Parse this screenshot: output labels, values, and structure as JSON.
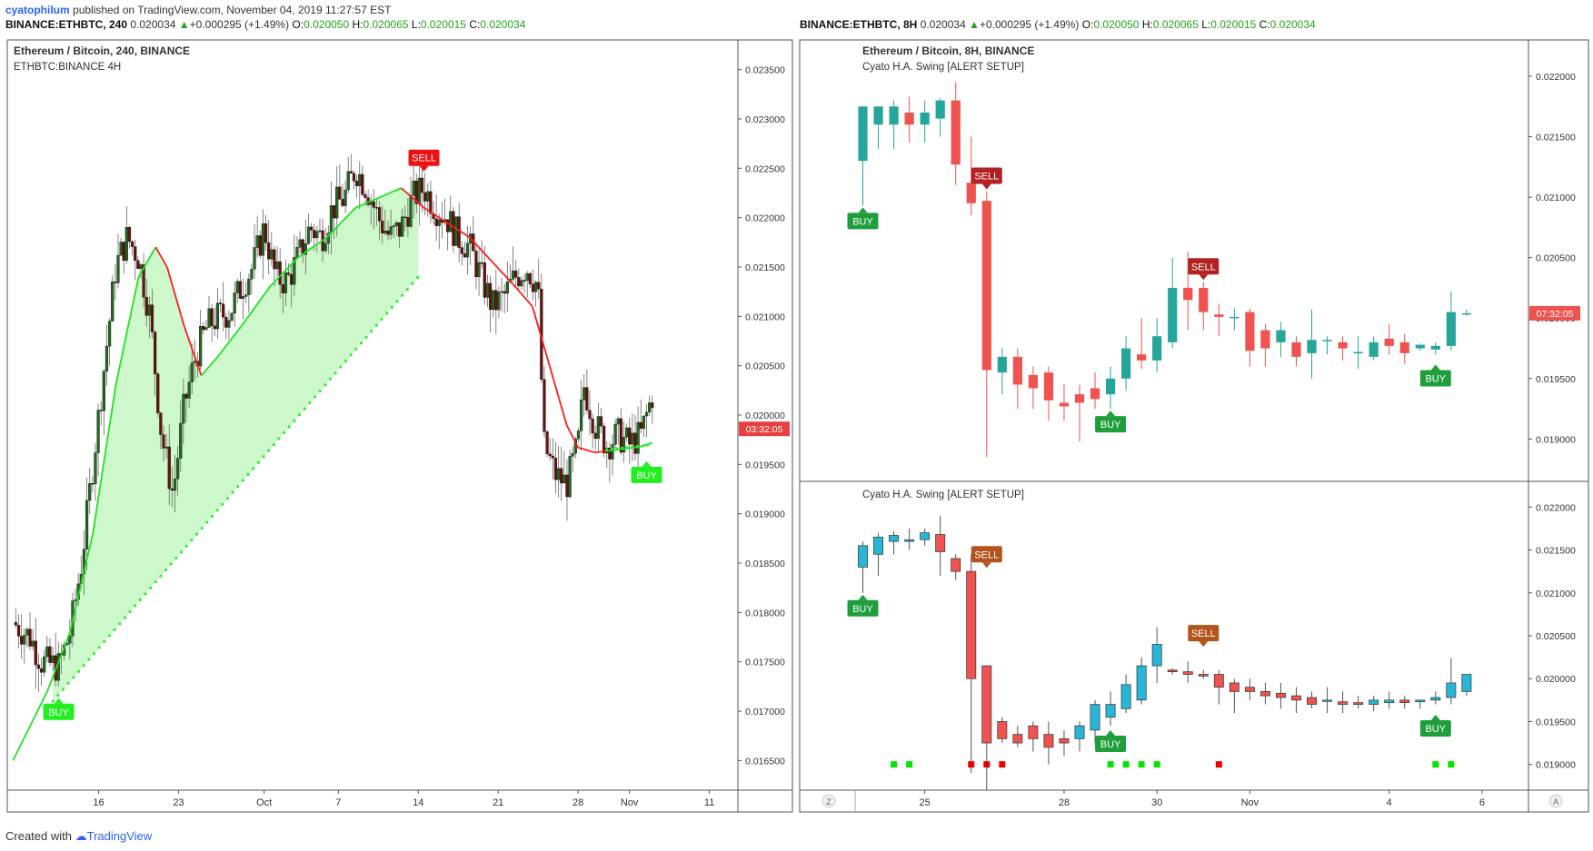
{
  "header_left": {
    "user": "cyatophilum",
    "published": " published on TradingView.com, November 04, 2019 11:27:57 EST",
    "symbol": "BINANCE:ETHBTC, 240",
    "price": "0.020034",
    "change": "+0.000295 (+1.49%)",
    "o_label": "O:",
    "o": "0.020050",
    "h_label": "H:",
    "h": "0.020065",
    "l_label": "L:",
    "l": "0.020015",
    "c_label": "C:",
    "c": "0.020034"
  },
  "header_right": {
    "symbol": "BINANCE:ETHBTC, 8H",
    "price": "0.020034",
    "change": "+0.000295 (+1.49%)",
    "o_label": "O:",
    "o": "0.020050",
    "h_label": "H:",
    "h": "0.020065",
    "l_label": "L:",
    "l": "0.020015",
    "c_label": "C:",
    "c": "0.020034"
  },
  "footer": {
    "created_with": "Created with",
    "brand": "TradingView"
  },
  "colors": {
    "bull_left": "#1f6b1f",
    "bear_left": "#6b0f0f",
    "ha_up": "#26a69a",
    "ha_down": "#ef5350",
    "cyan": "#29b6d6",
    "signal_buy": "#00e600",
    "signal_sell": "#e60000",
    "buy_label_right": "#1f9e3c",
    "sell_label_right": "#b22222",
    "sell_label_bottom": "#b5531c"
  },
  "chart_data": [
    {
      "id": "left",
      "type": "candlestick",
      "title": "Ethereum / Bitcoin, 240, BINANCE",
      "subtitle": "ETHBTC:BINANCE 4H",
      "x_ticks": [
        "16",
        "23",
        "Oct",
        "7",
        "14",
        "21",
        "28",
        "Nov",
        "11"
      ],
      "x_tick_index": [
        15,
        29,
        44,
        57,
        71,
        85,
        99,
        108,
        122
      ],
      "x_range": [
        -1,
        127
      ],
      "y_range": [
        0.0162,
        0.0238
      ],
      "y_ticks": [
        "0.023500",
        "0.023000",
        "0.022500",
        "0.022000",
        "0.021500",
        "0.021000",
        "0.020500",
        "0.020000",
        "0.019500",
        "0.019000",
        "0.018500",
        "0.018000",
        "0.017500",
        "0.017000",
        "0.016500"
      ],
      "last_price_label": "03:32:05",
      "last_price": 0.01986,
      "close_path": [
        [
          0,
          0.0179
        ],
        [
          3,
          0.01775
        ],
        [
          5,
          0.0175
        ],
        [
          8,
          0.01745
        ],
        [
          10,
          0.0178
        ],
        [
          12,
          0.0185
        ],
        [
          14,
          0.0195
        ],
        [
          16,
          0.0205
        ],
        [
          18,
          0.0215
        ],
        [
          20,
          0.0218
        ],
        [
          22,
          0.0216
        ],
        [
          24,
          0.021
        ],
        [
          26,
          0.0198
        ],
        [
          28,
          0.0192
        ],
        [
          30,
          0.0201
        ],
        [
          32,
          0.0206
        ],
        [
          34,
          0.0209
        ],
        [
          36,
          0.021
        ],
        [
          38,
          0.02105
        ],
        [
          40,
          0.0213
        ],
        [
          42,
          0.0215
        ],
        [
          44,
          0.0219
        ],
        [
          46,
          0.0214
        ],
        [
          48,
          0.02135
        ],
        [
          50,
          0.0216
        ],
        [
          52,
          0.0219
        ],
        [
          54,
          0.0218
        ],
        [
          56,
          0.0221
        ],
        [
          58,
          0.0222
        ],
        [
          60,
          0.0225
        ],
        [
          62,
          0.0223
        ],
        [
          64,
          0.022
        ],
        [
          66,
          0.0218
        ],
        [
          68,
          0.0219
        ],
        [
          70,
          0.0222
        ],
        [
          72,
          0.0223
        ],
        [
          74,
          0.0221
        ],
        [
          76,
          0.022
        ],
        [
          78,
          0.0218
        ],
        [
          80,
          0.0217
        ],
        [
          82,
          0.0214
        ],
        [
          84,
          0.0211
        ],
        [
          86,
          0.0212
        ],
        [
          88,
          0.0214
        ],
        [
          90,
          0.0215
        ],
        [
          92,
          0.0213
        ],
        [
          93,
          0.0197
        ],
        [
          95,
          0.0194
        ],
        [
          97,
          0.0193
        ],
        [
          99,
          0.0197
        ],
        [
          100,
          0.0203
        ],
        [
          102,
          0.0199
        ],
        [
          104,
          0.0197
        ],
        [
          106,
          0.0198
        ],
        [
          108,
          0.0197
        ],
        [
          110,
          0.0198
        ],
        [
          112,
          0.0202
        ]
      ],
      "trend_line": [
        [
          0,
          0.0165
        ],
        [
          6,
          0.0172
        ],
        [
          10,
          0.0178
        ],
        [
          14,
          0.0188
        ],
        [
          18,
          0.0203
        ],
        [
          22,
          0.0214
        ],
        [
          25,
          0.0217
        ],
        [
          27,
          0.0215
        ],
        [
          30,
          0.0209
        ],
        [
          33,
          0.0204
        ],
        [
          36,
          0.0206
        ],
        [
          40,
          0.0209
        ],
        [
          45,
          0.0213
        ],
        [
          50,
          0.0216
        ],
        [
          55,
          0.0218
        ],
        [
          60,
          0.0221
        ],
        [
          64,
          0.0222
        ],
        [
          68,
          0.0223
        ],
        [
          72,
          0.0221
        ],
        [
          76,
          0.02195
        ],
        [
          80,
          0.0218
        ],
        [
          84,
          0.02155
        ],
        [
          88,
          0.0213
        ],
        [
          91,
          0.0211
        ],
        [
          94,
          0.0205
        ],
        [
          97,
          0.0199
        ],
        [
          99,
          0.01967
        ],
        [
          102,
          0.01962
        ],
        [
          106,
          0.01965
        ],
        [
          110,
          0.01968
        ],
        [
          112,
          0.01972
        ]
      ],
      "trend_red_ranges": [
        [
          25,
          33
        ],
        [
          68,
          104
        ]
      ],
      "stop_dots_ranges": [
        [
          7,
          0.0171,
          71,
          0.0214
        ],
        [
          104,
          0.01965,
          112,
          0.0197
        ]
      ],
      "signals": [
        {
          "type": "BUY",
          "index": 8,
          "price": 0.01715
        },
        {
          "type": "SELL",
          "index": 72,
          "price": 0.02245
        },
        {
          "type": "BUY",
          "index": 111,
          "price": 0.01955
        }
      ]
    },
    {
      "id": "right_top",
      "type": "heikin-ashi",
      "title": "Ethereum / Bitcoin, 8H, BINANCE",
      "subtitle": "Cyato H.A. Swing [ALERT SETUP]",
      "x_ticks": [
        "25",
        "28",
        "30",
        "Nov",
        "4",
        "6"
      ],
      "x_tick_index": [
        4,
        13,
        19,
        25,
        34,
        40
      ],
      "x_range": [
        -0.5,
        43
      ],
      "y_range": [
        0.01865,
        0.0223
      ],
      "y_ticks": [
        "0.022000",
        "0.021500",
        "0.021000",
        "0.020500",
        "0.020000",
        "0.019500",
        "0.019000"
      ],
      "last_price_label": "07:32:05",
      "last_price": 0.02004,
      "candles": [
        [
          0.0213,
          0.02175,
          0.02093,
          0.02175
        ],
        [
          0.0216,
          0.02175,
          0.0214,
          0.02175
        ],
        [
          0.0216,
          0.0218,
          0.0214,
          0.02175
        ],
        [
          0.0217,
          0.02183,
          0.02145,
          0.0216
        ],
        [
          0.0216,
          0.0218,
          0.02145,
          0.0217
        ],
        [
          0.02165,
          0.02182,
          0.0215,
          0.0218
        ],
        [
          0.0218,
          0.02195,
          0.0211,
          0.02127
        ],
        [
          0.02112,
          0.0215,
          0.02085,
          0.02095
        ],
        [
          0.02097,
          0.02105,
          0.01885,
          0.01957
        ],
        [
          0.01955,
          0.01975,
          0.01937,
          0.01968
        ],
        [
          0.01968,
          0.01975,
          0.01925,
          0.01945
        ],
        [
          0.01953,
          0.0196,
          0.01925,
          0.01942
        ],
        [
          0.01955,
          0.0196,
          0.01915,
          0.01932
        ],
        [
          0.0193,
          0.01945,
          0.01915,
          0.01927
        ],
        [
          0.01937,
          0.01945,
          0.01898,
          0.0193
        ],
        [
          0.01942,
          0.01955,
          0.01925,
          0.01933
        ],
        [
          0.01937,
          0.0196,
          0.01925,
          0.0195
        ],
        [
          0.0195,
          0.01985,
          0.0194,
          0.01975
        ],
        [
          0.0197,
          0.02,
          0.01958,
          0.01965
        ],
        [
          0.01965,
          0.02,
          0.01955,
          0.01985
        ],
        [
          0.0198,
          0.0205,
          0.01975,
          0.02025
        ],
        [
          0.02025,
          0.02055,
          0.0199,
          0.02015
        ],
        [
          0.02025,
          0.0203,
          0.0199,
          0.02005
        ],
        [
          0.02003,
          0.02012,
          0.01985,
          0.02001
        ],
        [
          0.02001,
          0.02008,
          0.0199,
          0.02001
        ],
        [
          0.02005,
          0.02008,
          0.0196,
          0.01973
        ],
        [
          0.0199,
          0.01995,
          0.0196,
          0.01975
        ],
        [
          0.0198,
          0.01997,
          0.01968,
          0.0199
        ],
        [
          0.0198,
          0.01985,
          0.0196,
          0.01968
        ],
        [
          0.01971,
          0.02007,
          0.0195,
          0.01982
        ],
        [
          0.01981,
          0.01985,
          0.0197,
          0.01982
        ],
        [
          0.0198,
          0.01985,
          0.01965,
          0.01975
        ],
        [
          0.01971,
          0.01985,
          0.01958,
          0.01972
        ],
        [
          0.01968,
          0.01985,
          0.01965,
          0.0198
        ],
        [
          0.01983,
          0.01995,
          0.0197,
          0.01977
        ],
        [
          0.0198,
          0.01987,
          0.01962,
          0.01971
        ],
        [
          0.01975,
          0.01978,
          0.01973,
          0.01978
        ],
        [
          0.01974,
          0.0198,
          0.0197,
          0.01977
        ],
        [
          0.01977,
          0.02022,
          0.01973,
          0.02005
        ],
        [
          0.02004,
          0.02007,
          0.02002,
          0.02004
        ]
      ],
      "signals": [
        {
          "type": "BUY",
          "index": 0,
          "price": 0.02093
        },
        {
          "type": "SELL",
          "index": 8,
          "price": 0.02105
        },
        {
          "type": "BUY",
          "index": 16,
          "price": 0.01925
        },
        {
          "type": "SELL",
          "index": 22,
          "price": 0.0203
        },
        {
          "type": "BUY",
          "index": 37,
          "price": 0.01963
        }
      ]
    },
    {
      "id": "right_bottom",
      "type": "heikin-ashi",
      "title": "Cyato H.A. Swing [ALERT SETUP]",
      "x_range": [
        -0.5,
        43
      ],
      "y_range": [
        0.0187,
        0.0223
      ],
      "y_ticks": [
        "0.022000",
        "0.021500",
        "0.021000",
        "0.020500",
        "0.020000",
        "0.019500",
        "0.019000"
      ],
      "candles": [
        [
          0.0213,
          0.0216,
          0.021,
          0.02155
        ],
        [
          0.02145,
          0.0217,
          0.0212,
          0.02165
        ],
        [
          0.0216,
          0.02172,
          0.02145,
          0.02167
        ],
        [
          0.0216,
          0.02175,
          0.0215,
          0.02162
        ],
        [
          0.02162,
          0.02175,
          0.02155,
          0.0217
        ],
        [
          0.02168,
          0.0219,
          0.0212,
          0.02148
        ],
        [
          0.0214,
          0.02145,
          0.02115,
          0.02125
        ],
        [
          0.02125,
          0.02145,
          0.0189,
          0.02
        ],
        [
          0.02015,
          0.02015,
          0.0187,
          0.01925
        ],
        [
          0.0195,
          0.01955,
          0.01925,
          0.0193
        ],
        [
          0.01935,
          0.01945,
          0.0192,
          0.01925
        ],
        [
          0.01945,
          0.0195,
          0.01915,
          0.0193
        ],
        [
          0.01935,
          0.0195,
          0.019,
          0.0192
        ],
        [
          0.0193,
          0.0194,
          0.0191,
          0.01925
        ],
        [
          0.0193,
          0.0195,
          0.01915,
          0.01945
        ],
        [
          0.0194,
          0.01975,
          0.01925,
          0.0197
        ],
        [
          0.01955,
          0.01985,
          0.01945,
          0.0197
        ],
        [
          0.01965,
          0.02005,
          0.0196,
          0.01993
        ],
        [
          0.01975,
          0.02025,
          0.0197,
          0.02015
        ],
        [
          0.02015,
          0.0206,
          0.01995,
          0.0204
        ],
        [
          0.0201,
          0.02012,
          0.02005,
          0.02008
        ],
        [
          0.02008,
          0.0202,
          0.01995,
          0.02005
        ],
        [
          0.02005,
          0.0201,
          0.02,
          0.02003
        ],
        [
          0.02005,
          0.0201,
          0.0197,
          0.0199
        ],
        [
          0.01995,
          0.02,
          0.0196,
          0.01985
        ],
        [
          0.0199,
          0.02,
          0.01975,
          0.01985
        ],
        [
          0.01985,
          0.01995,
          0.0197,
          0.0198
        ],
        [
          0.01983,
          0.01995,
          0.01965,
          0.01978
        ],
        [
          0.0198,
          0.0199,
          0.0196,
          0.01975
        ],
        [
          0.01978,
          0.01985,
          0.01965,
          0.0197
        ],
        [
          0.01975,
          0.0199,
          0.0196,
          0.01975
        ],
        [
          0.01973,
          0.01985,
          0.0196,
          0.0197
        ],
        [
          0.01972,
          0.0198,
          0.01965,
          0.0197
        ],
        [
          0.0197,
          0.0198,
          0.01962,
          0.01975
        ],
        [
          0.01972,
          0.01985,
          0.01965,
          0.01975
        ],
        [
          0.01975,
          0.0198,
          0.01965,
          0.01972
        ],
        [
          0.01973,
          0.01975,
          0.01965,
          0.01975
        ],
        [
          0.01975,
          0.01985,
          0.0197,
          0.01978
        ],
        [
          0.01978,
          0.02024,
          0.0197,
          0.01995
        ],
        [
          0.01985,
          0.02005,
          0.0198,
          0.02005
        ]
      ],
      "signals": [
        {
          "type": "BUY",
          "index": 0,
          "price": 0.021
        },
        {
          "type": "SELL",
          "index": 8,
          "price": 0.02127
        },
        {
          "type": "BUY",
          "index": 16,
          "price": 0.01942
        },
        {
          "type": "SELL",
          "index": 22,
          "price": 0.02035
        },
        {
          "type": "BUY",
          "index": 37,
          "price": 0.0196
        }
      ],
      "signal_squares": [
        {
          "index": 2,
          "color": "buy"
        },
        {
          "index": 3,
          "color": "buy"
        },
        {
          "index": 7,
          "color": "sell"
        },
        {
          "index": 8,
          "color": "sell"
        },
        {
          "index": 9,
          "color": "sell"
        },
        {
          "index": 16,
          "color": "buy"
        },
        {
          "index": 17,
          "color": "buy"
        },
        {
          "index": 18,
          "color": "buy"
        },
        {
          "index": 19,
          "color": "buy"
        },
        {
          "index": 23,
          "color": "sell"
        },
        {
          "index": 37,
          "color": "buy"
        },
        {
          "index": 38,
          "color": "buy"
        }
      ],
      "square_level": 0.019
    }
  ],
  "axis_buttons": {
    "z": "Z",
    "a": "A"
  }
}
